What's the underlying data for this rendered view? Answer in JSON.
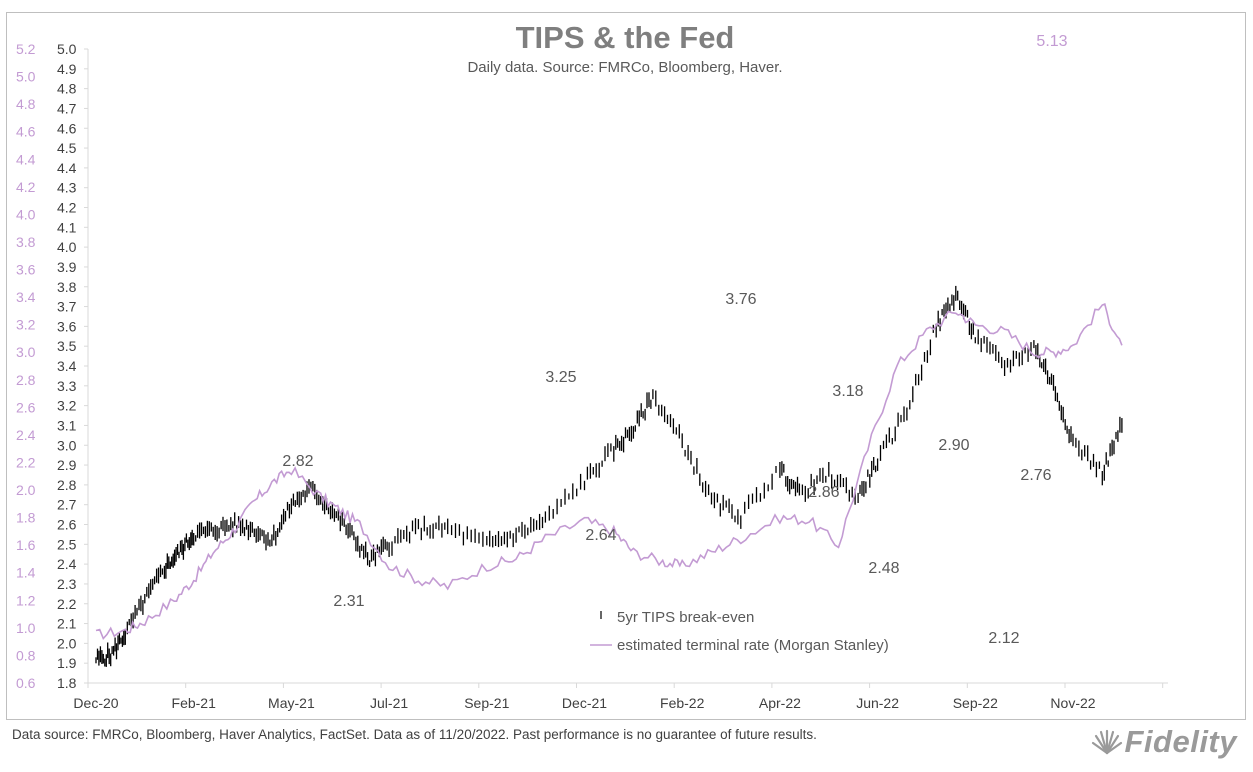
{
  "chart_data": {
    "type": "line",
    "title": "TIPS & the Fed",
    "subtitle": "Daily data.  Source: FMRCo, Bloomberg, Haver.",
    "x_ticks": [
      "Dec-20",
      "Feb-21",
      "May-21",
      "Jul-21",
      "Sep-21",
      "Dec-21",
      "Feb-22",
      "Apr-22",
      "Jun-22",
      "Sep-22",
      "Nov-22"
    ],
    "y_left": {
      "range": [
        0.6,
        5.2
      ],
      "ticks": [
        "0.6",
        "0.8",
        "1.0",
        "1.2",
        "1.4",
        "1.6",
        "1.8",
        "2.0",
        "2.2",
        "2.4",
        "2.6",
        "2.8",
        "3.0",
        "3.2",
        "3.4",
        "3.6",
        "3.8",
        "4.0",
        "4.2",
        "4.4",
        "4.6",
        "4.8",
        "5.0",
        "5.2"
      ],
      "color": "#c39bd3"
    },
    "y_right": {
      "range": [
        1.8,
        5.0
      ],
      "ticks": [
        "1.8",
        "1.9",
        "2.0",
        "2.1",
        "2.2",
        "2.3",
        "2.4",
        "2.5",
        "2.6",
        "2.7",
        "2.8",
        "2.9",
        "3.0",
        "3.1",
        "3.2",
        "3.3",
        "3.4",
        "3.5",
        "3.6",
        "3.7",
        "3.8",
        "3.9",
        "4.0",
        "4.1",
        "4.2",
        "4.3",
        "4.4",
        "4.5",
        "4.6",
        "4.7",
        "4.8",
        "4.9",
        "5.0"
      ],
      "color": "#404040"
    },
    "series": [
      {
        "name": "5yr TIPS break-even",
        "axis": "right",
        "color": "#000000",
        "x": [
          0,
          0.15,
          0.3,
          0.5,
          0.7,
          0.85,
          1.0,
          1.2,
          1.4,
          1.6,
          1.8,
          2.0,
          2.2,
          2.4,
          2.6,
          2.8,
          3.0,
          3.3,
          3.6,
          4.0,
          4.3,
          4.6,
          5.0,
          5.3,
          5.5,
          5.7,
          6.0,
          6.3,
          6.6,
          7.0,
          7.2,
          7.5,
          7.8,
          8.0,
          8.3,
          8.6,
          8.8,
          9.0,
          9.3,
          9.6,
          9.8,
          10.0,
          10.3,
          10.5
        ],
        "values": [
          1.92,
          1.94,
          2.05,
          2.22,
          2.38,
          2.46,
          2.55,
          2.57,
          2.6,
          2.58,
          2.52,
          2.7,
          2.78,
          2.68,
          2.56,
          2.42,
          2.5,
          2.58,
          2.58,
          2.5,
          2.55,
          2.62,
          2.82,
          2.98,
          3.08,
          3.25,
          3.02,
          2.72,
          2.64,
          2.88,
          2.76,
          2.85,
          2.74,
          2.92,
          3.18,
          3.6,
          3.76,
          3.55,
          3.4,
          3.5,
          3.3,
          3.02,
          2.86,
          3.1
        ]
      },
      {
        "name": "estimated terminal rate (Morgan Stanley)",
        "axis": "left",
        "color": "#c39bd3",
        "x": [
          0,
          0.3,
          0.5,
          0.8,
          1.0,
          1.2,
          1.4,
          1.6,
          1.8,
          2.0,
          2.3,
          2.5,
          2.7,
          3.0,
          3.3,
          3.6,
          4.0,
          4.3,
          4.6,
          5.0,
          5.3,
          5.5,
          5.8,
          6.0,
          6.3,
          6.6,
          7.0,
          7.3,
          7.6,
          7.9,
          8.2,
          8.5,
          8.8,
          9.0,
          9.3,
          9.6,
          9.8,
          10.0,
          10.3,
          10.5
        ],
        "values": [
          0.95,
          0.98,
          1.05,
          1.2,
          1.35,
          1.55,
          1.7,
          1.9,
          2.05,
          2.15,
          1.95,
          1.85,
          1.75,
          1.45,
          1.35,
          1.3,
          1.45,
          1.5,
          1.65,
          1.78,
          1.7,
          1.55,
          1.48,
          1.45,
          1.55,
          1.65,
          1.8,
          1.78,
          1.6,
          2.3,
          2.9,
          3.15,
          3.3,
          3.2,
          3.15,
          3.0,
          3.0,
          3.05,
          3.35,
          3.05
        ]
      }
    ],
    "annotations": [
      "2.82",
      "2.31",
      "3.25",
      "2.64",
      "3.76",
      "3.18",
      "2.86",
      "2.48",
      "2.90",
      "2.76",
      "2.12",
      "5.13"
    ],
    "legend": {
      "items": [
        "5yr TIPS break-even",
        "estimated terminal rate (Morgan Stanley)"
      ],
      "placement": "bottom-center"
    }
  },
  "footer": {
    "note": "Data source: FMRCo, Bloomberg, Haver Analytics, FactSet. Data as of 11/20/2022. Past performance is no guarantee of future results."
  },
  "logo": {
    "text": "Fidelity"
  }
}
